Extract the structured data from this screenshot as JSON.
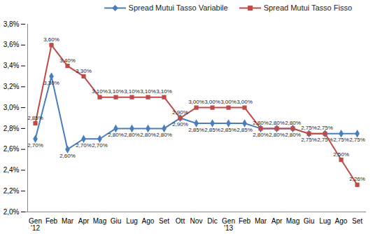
{
  "chart_data": {
    "type": "line",
    "categories": [
      "Gen\n'12",
      "Feb",
      "Mar",
      "Apr",
      "Mag",
      "Giu",
      "Lug",
      "Ago",
      "Set",
      "Ott",
      "Nov",
      "Dic",
      "Gen\n'13",
      "Feb",
      "Mar",
      "Apr",
      "Mag",
      "Giu",
      "Lug",
      "Ago",
      "Set"
    ],
    "series": [
      {
        "name": "Spread Mutui Tasso Variabile",
        "color": "#4A7EBB",
        "marker": "diamond",
        "values": [
          2.7,
          3.3,
          2.6,
          2.7,
          2.7,
          2.8,
          2.8,
          2.8,
          2.8,
          2.9,
          2.85,
          2.85,
          2.85,
          2.85,
          2.8,
          2.8,
          2.8,
          2.75,
          2.75,
          2.75,
          2.75
        ],
        "value_labels": [
          "2,70%",
          "3,30%",
          "2,60%",
          "2,70%",
          "2,70%",
          "2,80%",
          "2,80%",
          "2,80%",
          "2,80%",
          "2,90%",
          "2,85%",
          "2,85%",
          "2,85%",
          "2,85%",
          "2,80%",
          "2,80%",
          "2,80%",
          "2,75%",
          "2,75%",
          "2,75%",
          "2,75%"
        ]
      },
      {
        "name": "Spread Mutui Tasso Fisso",
        "color": "#BE4B48",
        "marker": "square",
        "values": [
          2.85,
          3.6,
          3.4,
          3.3,
          3.1,
          3.1,
          3.1,
          3.1,
          3.1,
          2.9,
          3.0,
          3.0,
          3.0,
          3.0,
          2.8,
          2.8,
          2.8,
          2.75,
          2.75,
          2.5,
          2.26
        ],
        "value_labels": [
          "2,85%",
          "3,60%",
          "3,40%",
          "3,30%",
          "3,10%",
          "3,10%",
          "3,10%",
          "3,10%",
          "3,10%",
          "2,90%",
          "3,00%",
          "3,00%",
          "3,00%",
          "3,00%",
          "2,80%",
          "2,80%",
          "2,80%",
          "2,75%",
          "2,75%",
          "2,50%",
          "2,26%"
        ]
      }
    ],
    "ylim": [
      2.0,
      3.8
    ],
    "yticks": [
      {
        "value": 2.0,
        "label": "2,0%"
      },
      {
        "value": 2.2,
        "label": "2,2%"
      },
      {
        "value": 2.4,
        "label": "2,4%"
      },
      {
        "value": 2.6,
        "label": "2,6%"
      },
      {
        "value": 2.8,
        "label": "2,8%"
      },
      {
        "value": 3.0,
        "label": "3,0%"
      },
      {
        "value": 3.2,
        "label": "3,2%"
      },
      {
        "value": 3.4,
        "label": "3,4%"
      },
      {
        "value": 3.6,
        "label": "3,6%"
      },
      {
        "value": 3.8,
        "label": "3,8%"
      }
    ],
    "grid": false,
    "legend": "top",
    "data_labels": true
  }
}
